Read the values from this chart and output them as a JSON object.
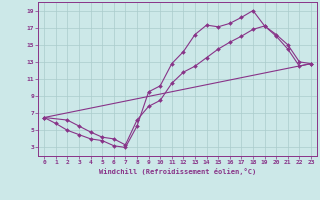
{
  "xlabel": "Windchill (Refroidissement éolien,°C)",
  "bg_color": "#cce8e8",
  "line_color": "#883388",
  "grid_color": "#aacccc",
  "xlim": [
    -0.5,
    23.5
  ],
  "ylim": [
    2.0,
    20.0
  ],
  "xticks": [
    0,
    1,
    2,
    3,
    4,
    5,
    6,
    7,
    8,
    9,
    10,
    11,
    12,
    13,
    14,
    15,
    16,
    17,
    18,
    19,
    20,
    21,
    22,
    23
  ],
  "yticks": [
    3,
    5,
    7,
    9,
    11,
    13,
    15,
    17,
    19
  ],
  "curve1_x": [
    0,
    1,
    2,
    3,
    4,
    5,
    6,
    7,
    8,
    9,
    10,
    11,
    12,
    13,
    14,
    15,
    16,
    17,
    18,
    19,
    20,
    21,
    22,
    23
  ],
  "curve1_y": [
    6.5,
    5.8,
    5.0,
    4.5,
    4.0,
    3.8,
    3.2,
    3.0,
    5.5,
    9.5,
    10.2,
    12.8,
    14.2,
    16.2,
    17.3,
    17.1,
    17.5,
    18.2,
    19.0,
    17.2,
    16.2,
    15.0,
    13.0,
    12.8
  ],
  "curve2_x": [
    0,
    2,
    3,
    4,
    5,
    6,
    7,
    8,
    9,
    10,
    11,
    12,
    13,
    14,
    15,
    16,
    17,
    18,
    19,
    20,
    21,
    22,
    23
  ],
  "curve2_y": [
    6.5,
    6.2,
    5.5,
    4.8,
    4.2,
    4.0,
    3.3,
    6.2,
    7.8,
    8.5,
    10.5,
    11.8,
    12.5,
    13.5,
    14.5,
    15.3,
    16.0,
    16.8,
    17.2,
    16.0,
    14.5,
    12.5,
    12.8
  ],
  "curve3_x": [
    0,
    23
  ],
  "curve3_y": [
    6.5,
    12.8
  ]
}
